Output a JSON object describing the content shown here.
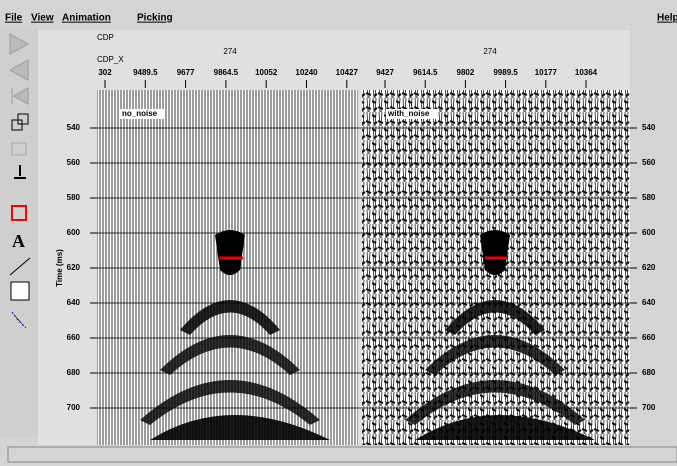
{
  "menu": [
    "File",
    "View",
    "Animation",
    "Picking",
    "Help"
  ],
  "header": {
    "cdp_label": "CDP",
    "cdp_x_label": "CDP_X",
    "panels": [
      {
        "cdp": "274",
        "label": "no_noise",
        "ticks": [
          "302",
          "9489.5",
          "9677",
          "9864.5",
          "10052",
          "10240",
          "10427"
        ]
      },
      {
        "cdp": "274",
        "label": "with_noise",
        "ticks": [
          "9427",
          "9614.5",
          "9802",
          "9989.5",
          "10177",
          "10364"
        ]
      }
    ]
  },
  "time_axis": {
    "label": "Time (ms)",
    "ticks": [
      540,
      560,
      580,
      600,
      620,
      640,
      660,
      680,
      700
    ]
  }
}
